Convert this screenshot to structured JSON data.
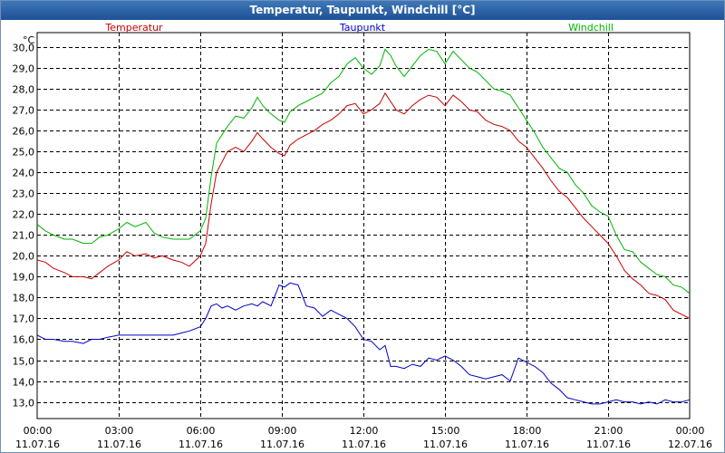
{
  "window": {
    "title": "Temperatur, Taupunkt, Windchill [°C]"
  },
  "chart_data": {
    "type": "line",
    "title": "Temperatur, Taupunkt, Windchill [°C]",
    "ylabel": "°C",
    "xlabel": "",
    "ylim": [
      12.2,
      30.7
    ],
    "xlim": [
      0,
      24
    ],
    "grid": true,
    "yticks": [
      13,
      14,
      15,
      16,
      17,
      18,
      19,
      20,
      21,
      22,
      23,
      24,
      25,
      26,
      27,
      28,
      29,
      30
    ],
    "ytick_labels": [
      "13,0",
      "14,0",
      "15,0",
      "16,0",
      "17,0",
      "18,0",
      "19,0",
      "20,0",
      "21,0",
      "22,0",
      "23,0",
      "24,0",
      "25,0",
      "26,0",
      "27,0",
      "28,0",
      "29,0",
      "30,0"
    ],
    "xticks": [
      {
        "x": 0,
        "time": "00:00",
        "date": "11.07.16"
      },
      {
        "x": 3,
        "time": "03:00",
        "date": "11.07.16"
      },
      {
        "x": 6,
        "time": "06:00",
        "date": "11.07.16"
      },
      {
        "x": 9,
        "time": "09:00",
        "date": "11.07.16"
      },
      {
        "x": 12,
        "time": "12:00",
        "date": "11.07.16"
      },
      {
        "x": 15,
        "time": "15:00",
        "date": "11.07.16"
      },
      {
        "x": 18,
        "time": "18:00",
        "date": "11.07.16"
      },
      {
        "x": 21,
        "time": "21:00",
        "date": "11.07.16"
      },
      {
        "x": 24,
        "time": "00:00",
        "date": "12.07.16"
      }
    ],
    "series": [
      {
        "name": "Temperatur",
        "color": "#c80000",
        "x": [
          0,
          0.3,
          0.6,
          1.0,
          1.3,
          1.7,
          2.0,
          2.3,
          2.6,
          3.0,
          3.3,
          3.6,
          4.0,
          4.3,
          4.6,
          5.0,
          5.3,
          5.6,
          6.0,
          6.2,
          6.4,
          6.6,
          6.8,
          7.0,
          7.3,
          7.6,
          7.9,
          8.1,
          8.3,
          8.6,
          8.9,
          9.1,
          9.3,
          9.6,
          9.9,
          10.2,
          10.5,
          10.8,
          11.1,
          11.4,
          11.7,
          12.0,
          12.3,
          12.6,
          12.8,
          13.0,
          13.2,
          13.5,
          13.8,
          14.1,
          14.4,
          14.7,
          15.0,
          15.3,
          15.6,
          15.9,
          16.2,
          16.5,
          16.8,
          17.1,
          17.4,
          17.7,
          18.0,
          18.3,
          18.6,
          18.9,
          19.2,
          19.5,
          19.8,
          20.1,
          20.4,
          20.7,
          21.0,
          21.3,
          21.6,
          21.9,
          22.2,
          22.5,
          22.8,
          23.1,
          23.4,
          23.7,
          24.0
        ],
        "values": [
          19.8,
          19.7,
          19.4,
          19.2,
          19.0,
          19.0,
          18.9,
          19.2,
          19.5,
          19.8,
          20.2,
          20.0,
          20.1,
          19.9,
          20.0,
          19.8,
          19.7,
          19.5,
          20.0,
          20.6,
          22.5,
          24.0,
          24.5,
          25.0,
          25.2,
          25.0,
          25.5,
          25.9,
          25.6,
          25.2,
          24.9,
          24.8,
          25.3,
          25.6,
          25.8,
          26.0,
          26.3,
          26.5,
          26.8,
          27.2,
          27.3,
          26.8,
          27.0,
          27.3,
          27.8,
          27.4,
          27.0,
          26.8,
          27.2,
          27.5,
          27.7,
          27.6,
          27.2,
          27.7,
          27.4,
          27.0,
          26.9,
          26.5,
          26.3,
          26.2,
          26.0,
          25.5,
          25.2,
          24.7,
          24.2,
          23.6,
          23.1,
          22.8,
          22.3,
          21.8,
          21.4,
          21.0,
          20.6,
          20.0,
          19.3,
          18.9,
          18.6,
          18.2,
          18.1,
          17.9,
          17.4,
          17.2,
          17.0
        ]
      },
      {
        "name": "Taupunkt",
        "color": "#0000c8",
        "x": [
          0,
          0.3,
          0.6,
          1.0,
          1.3,
          1.7,
          2.0,
          2.3,
          2.6,
          3.0,
          3.3,
          3.6,
          4.0,
          4.3,
          4.6,
          5.0,
          5.3,
          5.6,
          6.0,
          6.2,
          6.4,
          6.6,
          6.8,
          7.0,
          7.3,
          7.6,
          7.9,
          8.1,
          8.3,
          8.6,
          8.9,
          9.1,
          9.3,
          9.6,
          9.9,
          10.2,
          10.5,
          10.8,
          11.1,
          11.4,
          11.7,
          12.0,
          12.3,
          12.6,
          12.8,
          13.0,
          13.2,
          13.5,
          13.8,
          14.1,
          14.4,
          14.7,
          15.0,
          15.3,
          15.6,
          15.9,
          16.2,
          16.5,
          16.8,
          17.1,
          17.4,
          17.7,
          18.0,
          18.3,
          18.6,
          18.9,
          19.2,
          19.5,
          19.8,
          20.1,
          20.4,
          20.7,
          21.0,
          21.3,
          21.6,
          21.9,
          22.2,
          22.5,
          22.8,
          23.1,
          23.4,
          23.7,
          24.0
        ],
        "values": [
          16.2,
          16.0,
          16.0,
          15.9,
          15.9,
          15.8,
          16.0,
          16.0,
          16.1,
          16.2,
          16.2,
          16.2,
          16.2,
          16.2,
          16.2,
          16.2,
          16.3,
          16.4,
          16.6,
          17.0,
          17.6,
          17.7,
          17.5,
          17.6,
          17.4,
          17.6,
          17.7,
          17.6,
          17.8,
          17.6,
          18.6,
          18.5,
          18.7,
          18.6,
          17.6,
          17.5,
          17.1,
          17.4,
          17.2,
          17.0,
          16.6,
          16.0,
          15.9,
          15.5,
          15.7,
          14.7,
          14.7,
          14.6,
          14.8,
          14.7,
          15.1,
          15.0,
          15.2,
          15.0,
          14.7,
          14.3,
          14.2,
          14.1,
          14.2,
          14.3,
          14.0,
          15.1,
          14.9,
          14.7,
          14.4,
          13.9,
          13.6,
          13.2,
          13.1,
          13.0,
          12.9,
          12.9,
          13.0,
          13.1,
          13.0,
          13.0,
          12.9,
          13.0,
          12.9,
          13.1,
          13.0,
          13.0,
          13.1
        ]
      },
      {
        "name": "Windchill",
        "color": "#00b400",
        "x": [
          0,
          0.3,
          0.6,
          1.0,
          1.3,
          1.7,
          2.0,
          2.3,
          2.6,
          3.0,
          3.3,
          3.6,
          4.0,
          4.3,
          4.6,
          5.0,
          5.3,
          5.6,
          6.0,
          6.2,
          6.4,
          6.6,
          6.8,
          7.0,
          7.3,
          7.6,
          7.9,
          8.1,
          8.3,
          8.6,
          8.9,
          9.1,
          9.3,
          9.6,
          9.9,
          10.2,
          10.5,
          10.8,
          11.1,
          11.4,
          11.7,
          12.0,
          12.3,
          12.6,
          12.8,
          13.0,
          13.2,
          13.5,
          13.8,
          14.1,
          14.4,
          14.7,
          15.0,
          15.3,
          15.6,
          15.9,
          16.2,
          16.5,
          16.8,
          17.1,
          17.4,
          17.7,
          18.0,
          18.3,
          18.6,
          18.9,
          19.2,
          19.5,
          19.8,
          20.1,
          20.4,
          20.7,
          21.0,
          21.3,
          21.6,
          21.9,
          22.2,
          22.5,
          22.8,
          23.1,
          23.4,
          23.7,
          24.0
        ],
        "values": [
          21.5,
          21.2,
          21.0,
          20.8,
          20.8,
          20.6,
          20.6,
          20.9,
          21.0,
          21.3,
          21.6,
          21.4,
          21.6,
          21.1,
          20.9,
          20.8,
          20.8,
          20.8,
          21.2,
          21.8,
          23.8,
          25.4,
          25.8,
          26.2,
          26.7,
          26.6,
          27.1,
          27.6,
          27.2,
          26.8,
          26.5,
          26.4,
          26.9,
          27.2,
          27.4,
          27.6,
          27.8,
          28.3,
          28.6,
          29.2,
          29.5,
          29.0,
          28.7,
          29.1,
          29.9,
          29.6,
          29.1,
          28.6,
          29.1,
          29.6,
          29.9,
          29.8,
          29.2,
          29.8,
          29.4,
          29.0,
          28.8,
          28.4,
          28.0,
          27.9,
          27.7,
          27.1,
          26.5,
          25.9,
          25.2,
          24.7,
          24.2,
          24.0,
          23.4,
          23.0,
          22.4,
          22.1,
          21.9,
          21.0,
          20.3,
          20.2,
          19.7,
          19.4,
          19.1,
          19.0,
          18.6,
          18.5,
          18.2
        ]
      }
    ]
  }
}
